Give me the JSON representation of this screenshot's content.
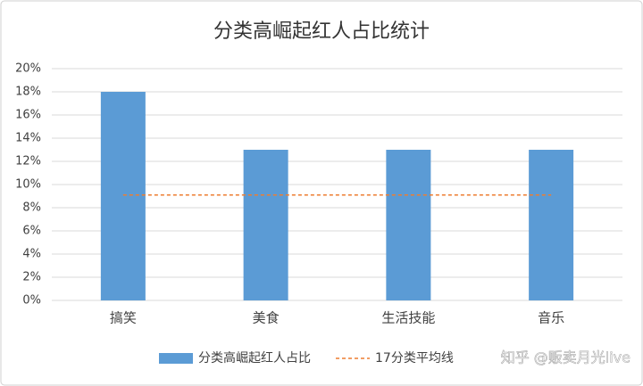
{
  "chart_data": {
    "type": "bar",
    "title": "分类高崛起红人占比统计",
    "categories": [
      "搞笑",
      "美食",
      "生活技能",
      "音乐"
    ],
    "series": [
      {
        "name": "分类高崛起红人占比",
        "type": "bar",
        "color": "#5b9bd5",
        "values": [
          18,
          13,
          13,
          13
        ]
      },
      {
        "name": "17分类平均线",
        "type": "line",
        "dashed": true,
        "color": "#ed7d31",
        "values": [
          9.1,
          9.1,
          9.1,
          9.1
        ]
      }
    ],
    "ylim": [
      0,
      20
    ],
    "yticks": [
      {
        "value": 0,
        "label": "0%"
      },
      {
        "value": 2,
        "label": "2%"
      },
      {
        "value": 4,
        "label": "4%"
      },
      {
        "value": 6,
        "label": "6%"
      },
      {
        "value": 8,
        "label": "8%"
      },
      {
        "value": 10,
        "label": "10%"
      },
      {
        "value": 12,
        "label": "12%"
      },
      {
        "value": 14,
        "label": "14%"
      },
      {
        "value": 16,
        "label": "16%"
      },
      {
        "value": 18,
        "label": "18%"
      },
      {
        "value": 20,
        "label": "20%"
      }
    ],
    "grid": true,
    "legend": "bottom",
    "watermark": "知乎 @贩卖月光live"
  }
}
